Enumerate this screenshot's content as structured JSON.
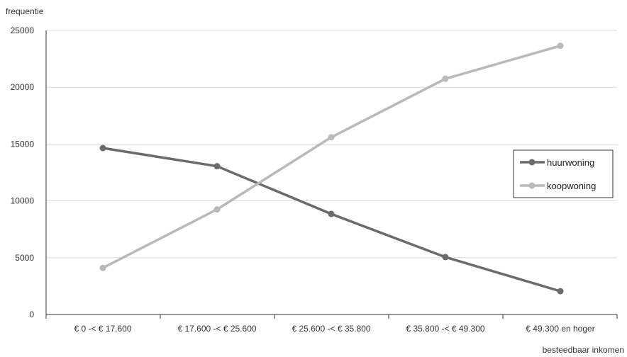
{
  "chart_data": {
    "type": "line",
    "title": "",
    "ylabel": "frequentie",
    "xlabel": "besteedbaar inkomen",
    "ylim": [
      0,
      25000
    ],
    "yticks": [
      0,
      5000,
      10000,
      15000,
      20000,
      25000
    ],
    "grid": true,
    "legend_position": "right",
    "categories": [
      "€ 0 -< € 17.600",
      "€ 17.600 -< € 25.600",
      "€ 25.600 -< € 35.800",
      "€ 35.800 -< € 49.300",
      "€ 49.300 en hoger"
    ],
    "series": [
      {
        "name": "huurwoning",
        "values": [
          14650,
          13050,
          8850,
          5050,
          2050
        ],
        "color": "#6b6b6b"
      },
      {
        "name": "koopwoning",
        "values": [
          4100,
          9250,
          15600,
          20750,
          23650
        ],
        "color": "#b9b9b9"
      }
    ]
  }
}
